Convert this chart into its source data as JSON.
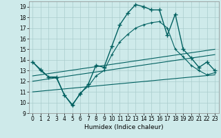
{
  "xlabel": "Humidex (Indice chaleur)",
  "xlim": [
    -0.5,
    23.5
  ],
  "ylim": [
    9,
    19.5
  ],
  "xticks": [
    0,
    1,
    2,
    3,
    4,
    5,
    6,
    7,
    8,
    9,
    10,
    11,
    12,
    13,
    14,
    15,
    16,
    17,
    18,
    19,
    20,
    21,
    22,
    23
  ],
  "yticks": [
    9,
    10,
    11,
    12,
    13,
    14,
    15,
    16,
    17,
    18,
    19
  ],
  "background_color": "#ceeaea",
  "grid_color": "#aacccc",
  "line_color": "#006060",
  "line1_x": [
    0,
    1,
    2,
    3,
    4,
    5,
    6,
    7,
    8,
    9,
    10,
    11,
    12,
    13,
    14,
    15,
    16,
    17,
    18,
    19,
    20,
    21,
    22,
    23
  ],
  "line1_y": [
    13.8,
    13.1,
    12.4,
    12.4,
    10.7,
    9.8,
    10.8,
    11.7,
    13.5,
    13.3,
    15.3,
    17.3,
    18.4,
    19.2,
    19.0,
    18.7,
    18.7,
    16.3,
    18.3,
    15.0,
    14.2,
    13.3,
    13.8,
    13.0
  ],
  "line2_x": [
    0,
    1,
    2,
    3,
    4,
    5,
    6,
    7,
    8,
    9,
    10,
    11,
    12,
    13,
    14,
    15,
    16,
    17,
    18,
    19,
    20,
    21,
    22,
    23
  ],
  "line2_y": [
    13.8,
    13.0,
    12.4,
    12.3,
    10.7,
    9.7,
    10.9,
    11.5,
    12.5,
    13.0,
    14.5,
    15.7,
    16.4,
    17.0,
    17.3,
    17.5,
    17.6,
    17.0,
    15.0,
    14.3,
    13.5,
    13.0,
    12.6,
    12.8
  ],
  "line3_x": [
    0,
    23
  ],
  "line3_y": [
    12.5,
    15.0
  ],
  "line4_x": [
    0,
    23
  ],
  "line4_y": [
    12.0,
    14.5
  ],
  "line5_x": [
    0,
    23
  ],
  "line5_y": [
    11.0,
    12.6
  ]
}
